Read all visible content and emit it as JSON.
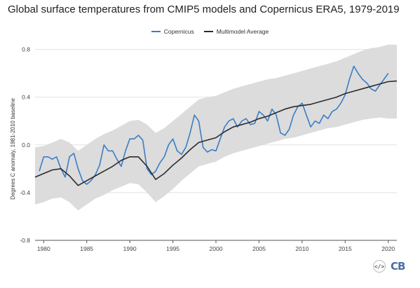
{
  "title": "Global surface temperatures from CMIP5 models and Copernicus ERA5, 1979-2019",
  "legend": [
    {
      "label": "Copernicus",
      "color": "#3b7dc4"
    },
    {
      "label": "Multimodel Average",
      "color": "#2b2b2b"
    }
  ],
  "footer": {
    "code_icon": "code-embed-icon",
    "logo_text": "CB"
  },
  "colors": {
    "band": "#dcdcdc",
    "copernicus": "#3b7dc4",
    "model": "#2b2b2b",
    "grid": "#e3e3e3",
    "axis": "#555555"
  },
  "chart_data": {
    "type": "line",
    "title": "Global surface temperatures from CMIP5 models and Copernicus ERA5, 1979-2019",
    "xlabel": "",
    "ylabel": "Degrees C anomaly, 1981-2010 baseline",
    "xlim": [
      1979,
      2021
    ],
    "ylim": [
      -0.8,
      0.85
    ],
    "xticks": [
      1980,
      1985,
      1990,
      1995,
      2000,
      2005,
      2010,
      2015,
      2020
    ],
    "yticks": [
      -0.8,
      -0.4,
      0.0,
      0.4,
      0.8
    ],
    "ytick_labels": [
      "-0.8",
      "-0.4",
      "0.0",
      "0.4",
      "0.8"
    ],
    "grid": true,
    "legend_position": "top-center",
    "series": [
      {
        "name": "Copernicus",
        "x": [
          1979.5,
          1980.0,
          1980.5,
          1981.0,
          1981.5,
          1982.0,
          1982.5,
          1983.0,
          1983.5,
          1984.0,
          1984.5,
          1985.0,
          1985.5,
          1986.0,
          1986.5,
          1987.0,
          1987.5,
          1988.0,
          1988.5,
          1989.0,
          1989.5,
          1990.0,
          1990.5,
          1991.0,
          1991.5,
          1992.0,
          1992.5,
          1993.0,
          1993.5,
          1994.0,
          1994.5,
          1995.0,
          1995.5,
          1996.0,
          1996.5,
          1997.0,
          1997.5,
          1998.0,
          1998.5,
          1999.0,
          1999.5,
          2000.0,
          2000.5,
          2001.0,
          2001.5,
          2002.0,
          2002.5,
          2003.0,
          2003.5,
          2004.0,
          2004.5,
          2005.0,
          2005.5,
          2006.0,
          2006.5,
          2007.0,
          2007.5,
          2008.0,
          2008.5,
          2009.0,
          2009.5,
          2010.0,
          2010.5,
          2011.0,
          2011.5,
          2012.0,
          2012.5,
          2013.0,
          2013.5,
          2014.0,
          2014.5,
          2015.0,
          2015.5,
          2016.0,
          2016.5,
          2017.0,
          2017.5,
          2018.0,
          2018.5,
          2019.0,
          2019.5,
          2020.0
        ],
        "values": [
          -0.22,
          -0.1,
          -0.1,
          -0.12,
          -0.1,
          -0.2,
          -0.27,
          -0.1,
          -0.07,
          -0.2,
          -0.3,
          -0.33,
          -0.3,
          -0.25,
          -0.17,
          0.0,
          -0.05,
          -0.05,
          -0.12,
          -0.18,
          -0.05,
          0.05,
          0.05,
          0.08,
          0.04,
          -0.2,
          -0.25,
          -0.22,
          -0.15,
          -0.1,
          0.0,
          0.05,
          -0.05,
          -0.08,
          -0.02,
          0.1,
          0.25,
          0.2,
          -0.02,
          -0.06,
          -0.04,
          -0.05,
          0.05,
          0.15,
          0.2,
          0.22,
          0.15,
          0.2,
          0.22,
          0.17,
          0.18,
          0.28,
          0.25,
          0.2,
          0.3,
          0.25,
          0.1,
          0.08,
          0.13,
          0.25,
          0.32,
          0.35,
          0.25,
          0.15,
          0.2,
          0.18,
          0.25,
          0.22,
          0.28,
          0.3,
          0.35,
          0.42,
          0.55,
          0.66,
          0.6,
          0.55,
          0.52,
          0.47,
          0.45,
          0.5,
          0.55,
          0.6
        ]
      },
      {
        "name": "Multimodel Average",
        "x": [
          1979,
          1980,
          1981,
          1982,
          1983,
          1984,
          1985,
          1986,
          1987,
          1988,
          1989,
          1990,
          1991,
          1992,
          1993,
          1994,
          1995,
          1996,
          1997,
          1998,
          1999,
          2000,
          2001,
          2002,
          2003,
          2004,
          2005,
          2006,
          2007,
          2008,
          2009,
          2010,
          2011,
          2012,
          2013,
          2014,
          2015,
          2016,
          2017,
          2018,
          2019,
          2020,
          2021
        ],
        "values": [
          -0.27,
          -0.24,
          -0.21,
          -0.2,
          -0.26,
          -0.34,
          -0.3,
          -0.26,
          -0.22,
          -0.18,
          -0.13,
          -0.1,
          -0.1,
          -0.18,
          -0.29,
          -0.24,
          -0.17,
          -0.11,
          -0.04,
          0.02,
          0.04,
          0.06,
          0.11,
          0.15,
          0.17,
          0.19,
          0.22,
          0.24,
          0.27,
          0.3,
          0.32,
          0.33,
          0.34,
          0.36,
          0.38,
          0.4,
          0.43,
          0.45,
          0.47,
          0.49,
          0.51,
          0.53,
          0.535
        ]
      },
      {
        "name": "",
        "x": [
          1979,
          1980,
          1981,
          1982,
          1983,
          1984,
          1985,
          1986,
          1987,
          1988,
          1989,
          1990,
          1991,
          1992,
          1993,
          1994,
          1995,
          1996,
          1997,
          1998,
          1999,
          2000,
          2001,
          2002,
          2003,
          2004,
          2005,
          2006,
          2007,
          2008,
          2009,
          2010,
          2011,
          2012,
          2013,
          2014,
          2015,
          2016,
          2017,
          2018,
          2019,
          2020,
          2021
        ],
        "upper": [
          -0.02,
          -0.01,
          0.02,
          0.05,
          0.02,
          -0.05,
          0.0,
          0.05,
          0.09,
          0.12,
          0.16,
          0.2,
          0.21,
          0.17,
          0.1,
          0.14,
          0.2,
          0.26,
          0.32,
          0.38,
          0.4,
          0.41,
          0.44,
          0.47,
          0.49,
          0.51,
          0.53,
          0.55,
          0.56,
          0.58,
          0.6,
          0.62,
          0.64,
          0.66,
          0.68,
          0.7,
          0.73,
          0.76,
          0.79,
          0.81,
          0.82,
          0.84,
          0.84
        ],
        "lower": [
          -0.5,
          -0.48,
          -0.45,
          -0.44,
          -0.48,
          -0.55,
          -0.5,
          -0.45,
          -0.42,
          -0.38,
          -0.35,
          -0.32,
          -0.33,
          -0.4,
          -0.48,
          -0.43,
          -0.37,
          -0.3,
          -0.24,
          -0.18,
          -0.16,
          -0.14,
          -0.1,
          -0.07,
          -0.05,
          -0.03,
          -0.01,
          0.01,
          0.03,
          0.05,
          0.06,
          0.08,
          0.1,
          0.12,
          0.14,
          0.15,
          0.17,
          0.19,
          0.21,
          0.22,
          0.23,
          0.22,
          0.22
        ]
      }
    ]
  }
}
